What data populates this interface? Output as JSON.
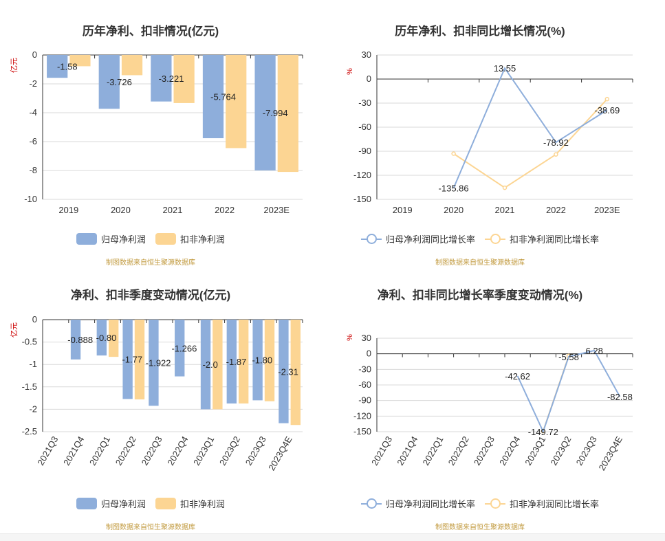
{
  "colors": {
    "net": "#8eaedb",
    "deduct": "#fcd593",
    "grid": "#d9d9d9",
    "axis": "#333333",
    "unit": "#cc0000",
    "src": "#c29b40"
  },
  "source_note": "制图数据来自恒生聚源数据库",
  "chart_data": [
    {
      "type": "bar",
      "title": "历年净利、扣非情况(亿元)",
      "ylabel": "亿元",
      "ylim": [
        -10,
        0
      ],
      "yticks": [
        0,
        -2,
        -4,
        -6,
        -8,
        -10
      ],
      "yticks_labels": [
        "0",
        "-2",
        "-4",
        "-6",
        "-8",
        "-10"
      ],
      "categories": [
        "2019",
        "2020",
        "2021",
        "2022",
        "2023E"
      ],
      "rotate_x": false,
      "series": [
        {
          "name": "归母净利润",
          "values": [
            -1.58,
            -3.726,
            -3.221,
            -5.764,
            -7.994
          ],
          "labels": [
            "-1.58",
            "-3.726",
            "-3.221",
            "-5.764",
            "-7.994"
          ]
        },
        {
          "name": "扣非净利润",
          "values": [
            -0.78,
            -1.4,
            -3.33,
            -6.45,
            -8.1
          ]
        }
      ]
    },
    {
      "type": "line",
      "title": "历年净利、扣非同比增长情况(%)",
      "ylabel": "%",
      "ylim": [
        -150,
        30
      ],
      "yticks": [
        30,
        0,
        -30,
        -60,
        -90,
        -120,
        -150
      ],
      "yticks_labels": [
        "30",
        "0",
        "-30",
        "-60",
        "-90",
        "-120",
        "-150"
      ],
      "categories": [
        "2019",
        "2020",
        "2021",
        "2022",
        "2023E"
      ],
      "rotate_x": false,
      "series": [
        {
          "name": "归母净利润同比增长率",
          "values": [
            null,
            -135.86,
            13.55,
            -78.92,
            -38.69
          ],
          "labels": [
            null,
            "-135.86",
            "13.55",
            "-78.92",
            "-38.69"
          ]
        },
        {
          "name": "扣非净利润同比增长率",
          "values": [
            null,
            -93,
            -135.5,
            -94,
            -25
          ]
        }
      ]
    },
    {
      "type": "bar",
      "title": "净利、扣非季度变动情况(亿元)",
      "ylabel": "亿元",
      "ylim": [
        -2.5,
        0
      ],
      "yticks": [
        0,
        -0.5,
        -1,
        -1.5,
        -2,
        -2.5
      ],
      "yticks_labels": [
        "0",
        "-0.5",
        "-1",
        "-1.5",
        "-2",
        "-2.5"
      ],
      "categories": [
        "2021Q3",
        "2021Q4",
        "2022Q1",
        "2022Q2",
        "2022Q3",
        "2022Q4",
        "2023Q1",
        "2023Q2",
        "2023Q3",
        "2023Q4E"
      ],
      "rotate_x": true,
      "series": [
        {
          "name": "归母净利润",
          "values": [
            null,
            -0.888,
            -0.8,
            -1.77,
            -1.922,
            -1.266,
            -2.0,
            -1.87,
            -1.8,
            -2.31
          ],
          "labels": [
            null,
            "-0.888",
            "-0.80",
            "-1.77",
            "-1.922",
            "-1.266",
            "-2.0",
            "-1.87",
            "-1.80",
            "-2.31"
          ]
        },
        {
          "name": "扣非净利润",
          "values": [
            null,
            null,
            -0.83,
            -1.78,
            null,
            null,
            -2.0,
            -1.87,
            -1.82,
            -2.35
          ]
        }
      ]
    },
    {
      "type": "line",
      "title": "净利、扣非同比增长率季度变动情况(%)",
      "ylabel": "%",
      "ylim": [
        -150,
        30
      ],
      "yticks": [
        30,
        0,
        -30,
        -60,
        -90,
        -120,
        -150
      ],
      "yticks_labels": [
        "30",
        "0",
        "-30",
        "-60",
        "-90",
        "-120",
        "-150"
      ],
      "categories": [
        "2021Q3",
        "2021Q4",
        "2022Q1",
        "2022Q2",
        "2022Q3",
        "2022Q4",
        "2023Q1",
        "2023Q2",
        "2023Q3",
        "2023Q4E"
      ],
      "rotate_x": true,
      "series": [
        {
          "name": "归母净利润同比增长率",
          "values": [
            null,
            null,
            null,
            null,
            null,
            -42.62,
            -149.72,
            -5.58,
            6.28,
            -82.58
          ],
          "labels": [
            null,
            null,
            null,
            null,
            null,
            "-42.62",
            "-149.72",
            "-5.58",
            "6.28",
            "-82.58"
          ]
        },
        {
          "name": "扣非净利润同比增长率",
          "values": [
            null,
            null,
            null,
            null,
            null,
            null,
            -149,
            -4,
            null,
            null
          ]
        }
      ]
    }
  ]
}
